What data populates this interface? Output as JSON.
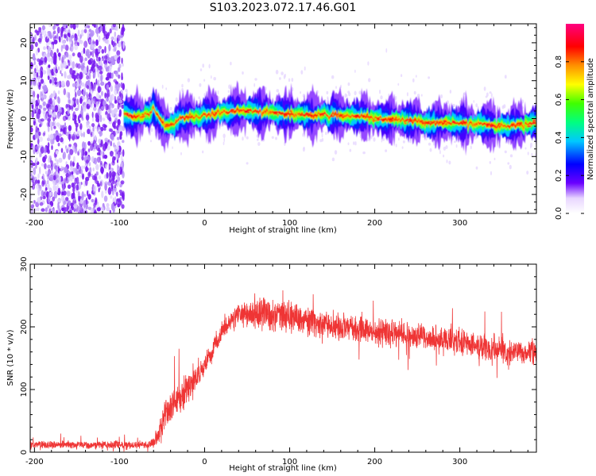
{
  "title": "S103.2023.072.17.46.G01",
  "chart_data": [
    {
      "type": "heatmap",
      "xlabel": "Height of straight line (km)",
      "ylabel": "Frequency (Hz)",
      "xlim": [
        -205,
        390
      ],
      "ylim": [
        -25,
        25
      ],
      "xticks": [
        -200,
        -100,
        0,
        100,
        200,
        300
      ],
      "xtick_labels": [
        "-200",
        "-100",
        "0",
        "100",
        "200",
        "300"
      ],
      "yticks": [
        -20,
        -10,
        0,
        10,
        20
      ],
      "ytick_labels": [
        "-20",
        "-10",
        "0",
        "10",
        "20"
      ],
      "colorbar": {
        "label": "Normalized spectral amplitude",
        "range": [
          0,
          1
        ],
        "ticks": [
          0.0,
          0.2,
          0.4,
          0.6,
          0.8
        ],
        "tick_labels": [
          "0.0",
          "0.2",
          "0.4",
          "0.6",
          "0.8"
        ]
      },
      "noise_region": {
        "x_range": [
          -205,
          -95
        ],
        "amplitude": 0.15
      },
      "signal_ridge": {
        "x": [
          -95,
          -85,
          -75,
          -65,
          -60,
          -55,
          -50,
          -45,
          -40,
          -35,
          -30,
          -20,
          -10,
          0,
          10,
          20,
          30,
          40,
          60,
          80,
          100,
          120,
          140,
          160,
          180,
          200,
          220,
          240,
          260,
          280,
          300,
          320,
          340,
          360,
          380,
          390
        ],
        "y": [
          1.5,
          0.5,
          0.5,
          1.2,
          2.5,
          1.0,
          -1.0,
          -2.0,
          -1.5,
          -1.0,
          0.0,
          0.5,
          0.5,
          0.8,
          1.2,
          1.5,
          1.8,
          2.0,
          2.0,
          1.5,
          1.2,
          1.0,
          1.0,
          0.8,
          0.5,
          0.0,
          -0.2,
          -0.5,
          -1.0,
          -1.0,
          -1.2,
          -1.5,
          -1.8,
          -2.0,
          -1.5,
          -1.0
        ]
      },
      "grid": false
    },
    {
      "type": "line",
      "xlabel": "Height of straight line (km)",
      "ylabel": "SNR (10 * v/v)",
      "xlim": [
        -205,
        390
      ],
      "ylim": [
        0,
        300
      ],
      "xticks": [
        -200,
        -100,
        0,
        100,
        200,
        300
      ],
      "xtick_labels": [
        "-200",
        "-100",
        "0",
        "100",
        "200",
        "300"
      ],
      "yticks": [
        0,
        100,
        200,
        300
      ],
      "ytick_labels": [
        "0",
        "100",
        "200",
        "300"
      ],
      "color": "#ef3535",
      "series": [
        {
          "x": [
            -205,
            -150,
            -100,
            -65,
            -60,
            -55,
            -50,
            -45,
            -40,
            -30,
            -20,
            -10,
            0,
            10,
            20,
            30,
            40,
            50,
            60,
            70,
            80,
            90,
            100,
            110,
            120,
            140,
            160,
            180,
            200,
            220,
            240,
            260,
            280,
            300,
            320,
            340,
            360,
            380,
            390
          ],
          "y": [
            12,
            12,
            12,
            12,
            15,
            25,
            45,
            60,
            70,
            85,
            100,
            115,
            140,
            165,
            190,
            210,
            218,
            222,
            225,
            225,
            222,
            218,
            215,
            212,
            210,
            205,
            200,
            198,
            192,
            190,
            188,
            185,
            182,
            178,
            170,
            165,
            160,
            158,
            160
          ],
          "spread": [
            6,
            6,
            6,
            6,
            8,
            15,
            20,
            25,
            25,
            25,
            20,
            18,
            15,
            15,
            15,
            15,
            18,
            20,
            25,
            28,
            28,
            25,
            25,
            22,
            22,
            20,
            20,
            20,
            20,
            20,
            20,
            20,
            20,
            20,
            20,
            20,
            20,
            20,
            20
          ]
        }
      ],
      "grid": false
    }
  ]
}
